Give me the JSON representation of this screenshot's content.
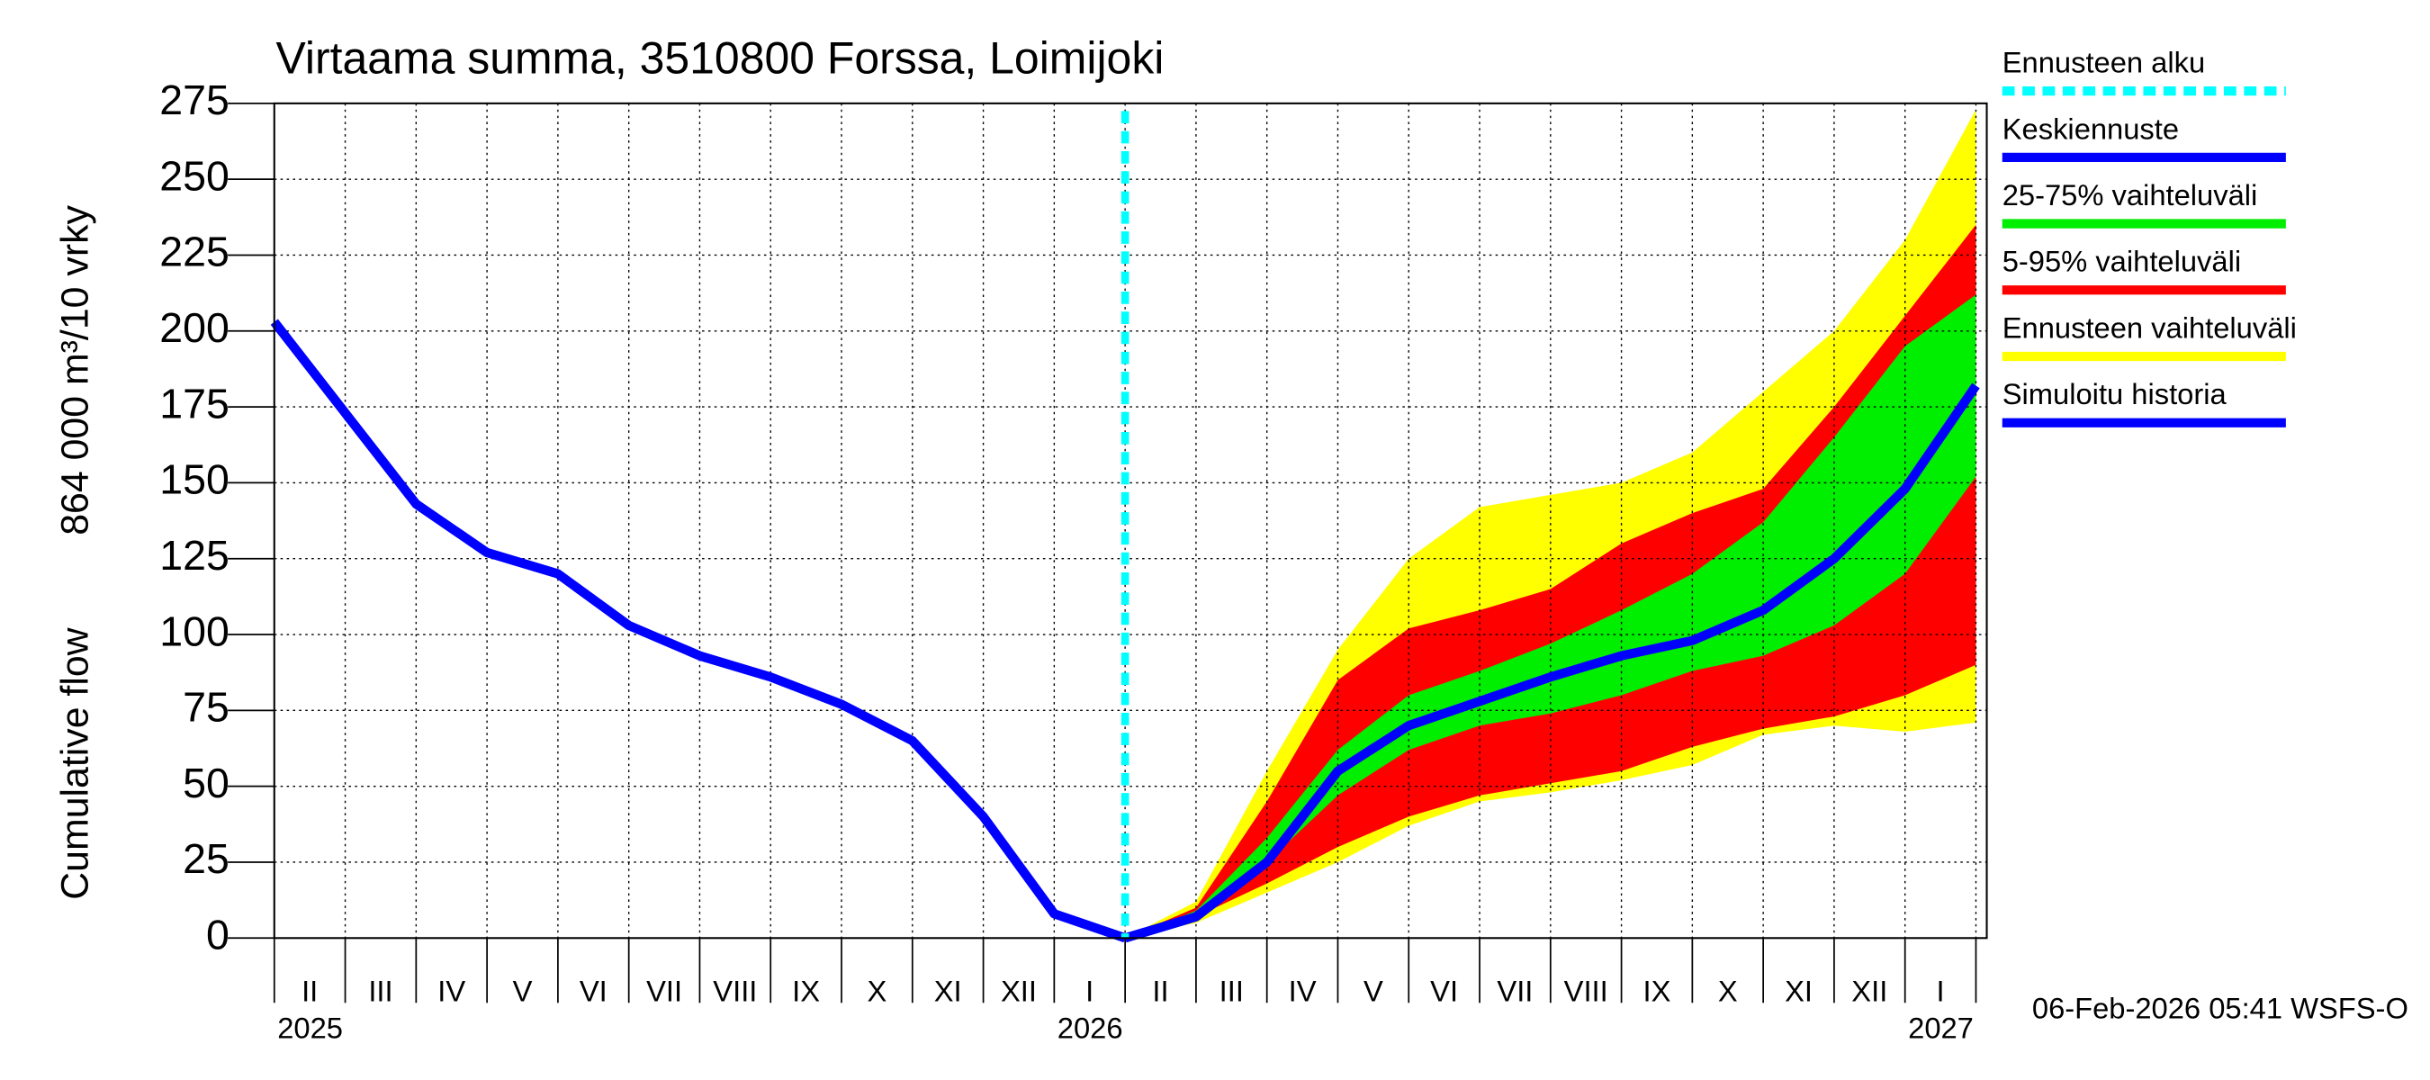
{
  "chart_data": {
    "type": "band-forecast",
    "title": "Virtaama summa, 3510800 Forssa, Loimijoki",
    "y_label": [
      "Cumulative flow",
      "864 000 m³/10 vrky"
    ],
    "footer": "06-Feb-2026 05:41 WSFS-O",
    "x": [
      "2025-02",
      "2025-03",
      "2025-04",
      "2025-05",
      "2025-06",
      "2025-07",
      "2025-08",
      "2025-09",
      "2025-10",
      "2025-11",
      "2025-12",
      "2026-01",
      "2026-02",
      "2026-03",
      "2026-04",
      "2026-05",
      "2026-06",
      "2026-07",
      "2026-08",
      "2026-09",
      "2026-10",
      "2026-11",
      "2026-12",
      "2027-01",
      "2027-02"
    ],
    "xlim": [
      "2025-02",
      "2027-02"
    ],
    "month_labels": [
      "II",
      "III",
      "IV",
      "V",
      "VI",
      "VII",
      "VIII",
      "IX",
      "X",
      "XI",
      "XII",
      "I",
      "II",
      "III",
      "IV",
      "V",
      "VI",
      "VII",
      "VIII",
      "IX",
      "X",
      "XI",
      "XII",
      "I"
    ],
    "year_labels": [
      {
        "value": "2025-02",
        "label": "2025"
      },
      {
        "value": "2026-01",
        "label": "2026"
      },
      {
        "value": "2027-01",
        "label": "2027"
      }
    ],
    "ylim": [
      0,
      275
    ],
    "yticks": [
      0,
      25,
      50,
      75,
      100,
      125,
      150,
      175,
      200,
      225,
      250,
      275
    ],
    "grid": true,
    "forecast_start": {
      "name": "Ennusteen alku",
      "x": "2026-02",
      "color": "#00ffff"
    },
    "series": [
      {
        "name": "Keskiennuste",
        "style": "line",
        "color": "#0000ff",
        "values": [
          null,
          null,
          null,
          null,
          null,
          null,
          null,
          null,
          null,
          null,
          null,
          null,
          0,
          7,
          25,
          55,
          70,
          78,
          86,
          93,
          98,
          108,
          125,
          148,
          182
        ]
      },
      {
        "name": "25-75% vaihteluväli",
        "style": "band",
        "color": "#00ee00",
        "upper": [
          null,
          null,
          null,
          null,
          null,
          null,
          null,
          null,
          null,
          null,
          null,
          null,
          0,
          9,
          33,
          62,
          80,
          88,
          97,
          108,
          120,
          137,
          165,
          195,
          212
        ],
        "lower": [
          null,
          null,
          null,
          null,
          null,
          null,
          null,
          null,
          null,
          null,
          null,
          null,
          0,
          8,
          25,
          47,
          62,
          70,
          74,
          80,
          88,
          93,
          103,
          120,
          152
        ]
      },
      {
        "name": "5-95% vaihteluväli",
        "style": "band",
        "color": "#ff0000",
        "upper": [
          null,
          null,
          null,
          null,
          null,
          null,
          null,
          null,
          null,
          null,
          null,
          null,
          0,
          10,
          45,
          85,
          102,
          108,
          115,
          130,
          140,
          148,
          175,
          205,
          235
        ],
        "lower": [
          null,
          null,
          null,
          null,
          null,
          null,
          null,
          null,
          null,
          null,
          null,
          null,
          0,
          7,
          18,
          30,
          40,
          47,
          51,
          55,
          63,
          69,
          73,
          80,
          90
        ]
      },
      {
        "name": "Ennusteen vaihteluväli",
        "style": "band",
        "color": "#ffff00",
        "upper": [
          null,
          null,
          null,
          null,
          null,
          null,
          null,
          null,
          null,
          null,
          null,
          null,
          0,
          12,
          55,
          95,
          125,
          142,
          146,
          150,
          160,
          180,
          200,
          230,
          273
        ],
        "lower": [
          null,
          null,
          null,
          null,
          null,
          null,
          null,
          null,
          null,
          null,
          null,
          null,
          0,
          5,
          15,
          25,
          37,
          45,
          48,
          52,
          57,
          67,
          70,
          68,
          71
        ]
      },
      {
        "name": "Simuloitu historia",
        "style": "line",
        "color": "#0000ff",
        "values": [
          203,
          173,
          143,
          127,
          120,
          103,
          93,
          86,
          77,
          65,
          40,
          8,
          0,
          null,
          null,
          null,
          null,
          null,
          null,
          null,
          null,
          null,
          null,
          null,
          null
        ]
      }
    ]
  }
}
